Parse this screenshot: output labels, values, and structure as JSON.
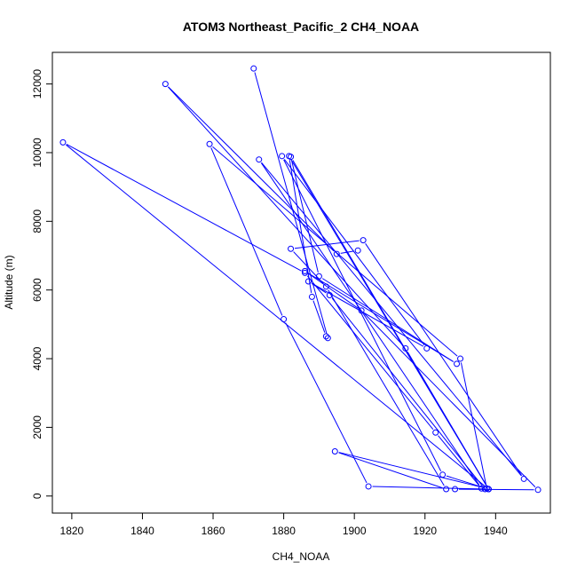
{
  "chart_data": {
    "type": "line",
    "title": "ATOM3 Northeast_Pacific_2 CH4_NOAA",
    "xlabel": "CH4_NOAA",
    "ylabel": "Altitude (m)",
    "xlim": [
      1814.5,
      1955.5
    ],
    "ylim": [
      -497,
      12920
    ],
    "x_ticks": [
      "1820",
      "1840",
      "1860",
      "1880",
      "1900",
      "1920",
      "1940"
    ],
    "y_ticks": [
      "0",
      "2000",
      "4000",
      "6000",
      "8000",
      "10000",
      "12000"
    ],
    "grid": false,
    "line_color": "#0000ff",
    "marker": "open-circle",
    "x": [
      1871.5,
      1892.5,
      1892.0,
      1888.0,
      1881.5,
      1938.0,
      1904.0,
      1880.0,
      1859.0,
      1930.0,
      1937.5,
      1894.5,
      1926.0,
      1892.0,
      1882.0,
      1902.5,
      1948.0,
      1873.0,
      1936.0,
      1923.0,
      1886.0,
      1817.5,
      1938.0,
      1882.0,
      1890.0,
      1929.0,
      1886.0,
      1902.0,
      1952.0,
      1928.5,
      1937.0,
      1893.0,
      1887.0,
      1920.5,
      1879.5,
      1925.0,
      1938.0,
      1914.5,
      1846.5,
      1895.0,
      1901.0
    ],
    "y": [
      12450,
      4600,
      4650,
      5800,
      9900,
      200,
      280,
      5150,
      10250,
      4000,
      220,
      1300,
      200,
      6100,
      7200,
      7450,
      500,
      9800,
      220,
      1850,
      6500,
      10300,
      200,
      9880,
      6400,
      3850,
      6550,
      5400,
      180,
      200,
      200,
      5850,
      6250,
      4300,
      9900,
      620,
      200,
      4300,
      12000,
      7050,
      7150
    ]
  }
}
